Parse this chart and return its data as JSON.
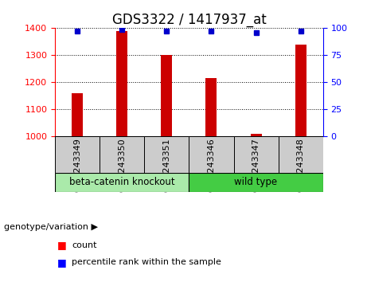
{
  "title": "GDS3322 / 1417937_at",
  "samples": [
    "GSM243349",
    "GSM243350",
    "GSM243351",
    "GSM243346",
    "GSM243347",
    "GSM243348"
  ],
  "counts": [
    1160,
    1390,
    1300,
    1215,
    1010,
    1340
  ],
  "percentiles": [
    97,
    99,
    97,
    97,
    96,
    97
  ],
  "ylim_left": [
    1000,
    1400
  ],
  "ylim_right": [
    0,
    100
  ],
  "yticks_left": [
    1000,
    1100,
    1200,
    1300,
    1400
  ],
  "yticks_right": [
    0,
    25,
    50,
    75,
    100
  ],
  "bar_color": "#cc0000",
  "dot_color": "#0000cc",
  "groups": [
    {
      "label": "beta-catenin knockout",
      "indices": [
        0,
        1,
        2
      ],
      "color": "#aaeaaa"
    },
    {
      "label": "wild type",
      "indices": [
        3,
        4,
        5
      ],
      "color": "#44cc44"
    }
  ],
  "sample_bg_color": "#cccccc",
  "bar_width": 0.25,
  "title_fontsize": 12,
  "tick_fontsize": 8,
  "label_fontsize": 8.5
}
